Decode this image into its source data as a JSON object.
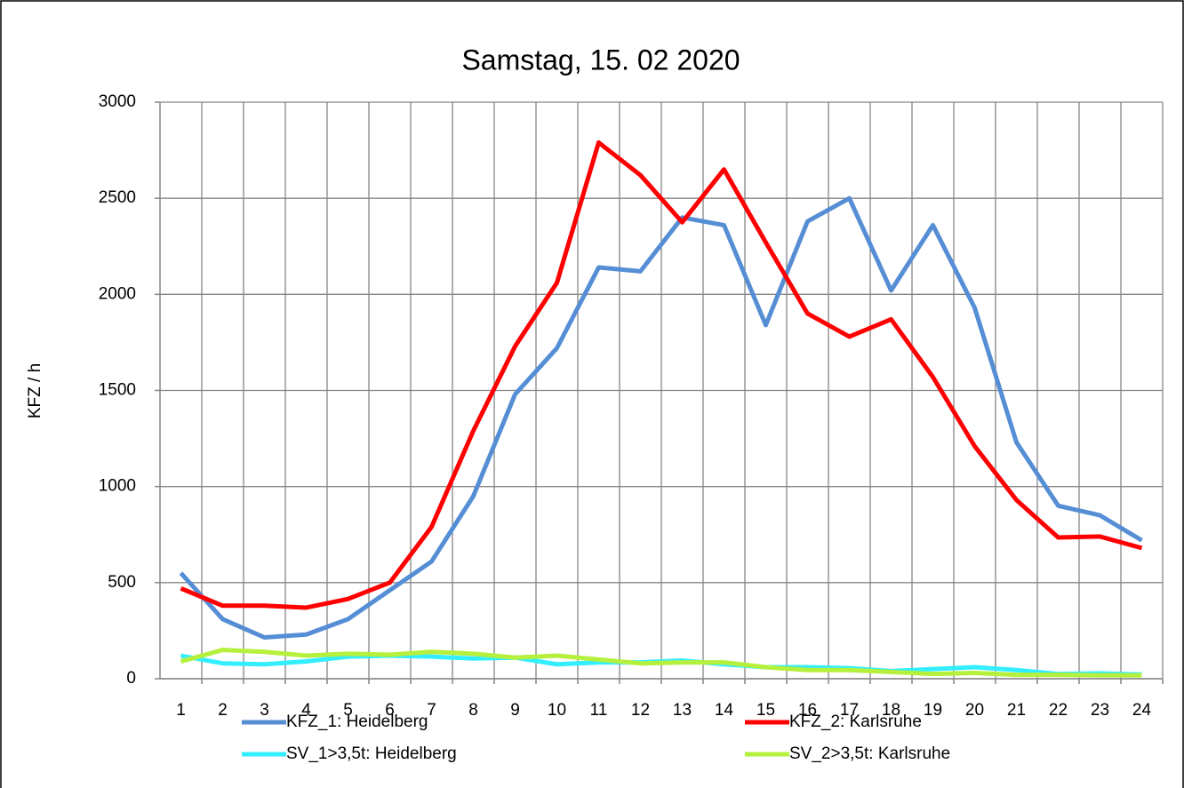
{
  "chart_data": {
    "type": "line",
    "title": "Samstag, 15. 02 2020",
    "y_label": "KFZ / h",
    "categories": [
      1,
      2,
      3,
      4,
      5,
      6,
      7,
      8,
      9,
      10,
      11,
      12,
      13,
      14,
      15,
      16,
      17,
      18,
      19,
      20,
      21,
      22,
      23,
      24
    ],
    "series": [
      {
        "name": "KFZ_1: Heidelberg",
        "color": "#558ed5",
        "values": [
          550,
          310,
          215,
          230,
          310,
          460,
          610,
          950,
          1480,
          1720,
          2140,
          2120,
          2400,
          2360,
          1840,
          2380,
          2500,
          2020,
          2360,
          1930,
          1230,
          900,
          850,
          720
        ]
      },
      {
        "name": "KFZ_2: Karlsruhe",
        "color": "#ff0000",
        "values": [
          470,
          380,
          380,
          370,
          415,
          500,
          790,
          1290,
          1730,
          2060,
          2790,
          2620,
          2375,
          2650,
          2270,
          1900,
          1780,
          1870,
          1570,
          1210,
          930,
          735,
          740,
          680
        ]
      },
      {
        "name": "SV_1>3,5t: Heidelberg",
        "color": "#33eeff",
        "values": [
          120,
          80,
          75,
          90,
          115,
          120,
          115,
          105,
          110,
          75,
          85,
          85,
          95,
          75,
          60,
          60,
          55,
          40,
          50,
          60,
          45,
          25,
          28,
          22
        ]
      },
      {
        "name": "SV_2>3,5t: Karlsruhe",
        "color": "#b4f03c",
        "values": [
          90,
          150,
          140,
          120,
          130,
          125,
          140,
          130,
          110,
          120,
          100,
          80,
          85,
          85,
          60,
          45,
          45,
          35,
          25,
          30,
          20,
          20,
          18,
          18
        ]
      }
    ],
    "ylim": [
      0,
      3000
    ],
    "yticks": [
      0,
      500,
      1000,
      1500,
      2000,
      2500,
      3000
    ],
    "grid": true,
    "legend": "bottom"
  }
}
